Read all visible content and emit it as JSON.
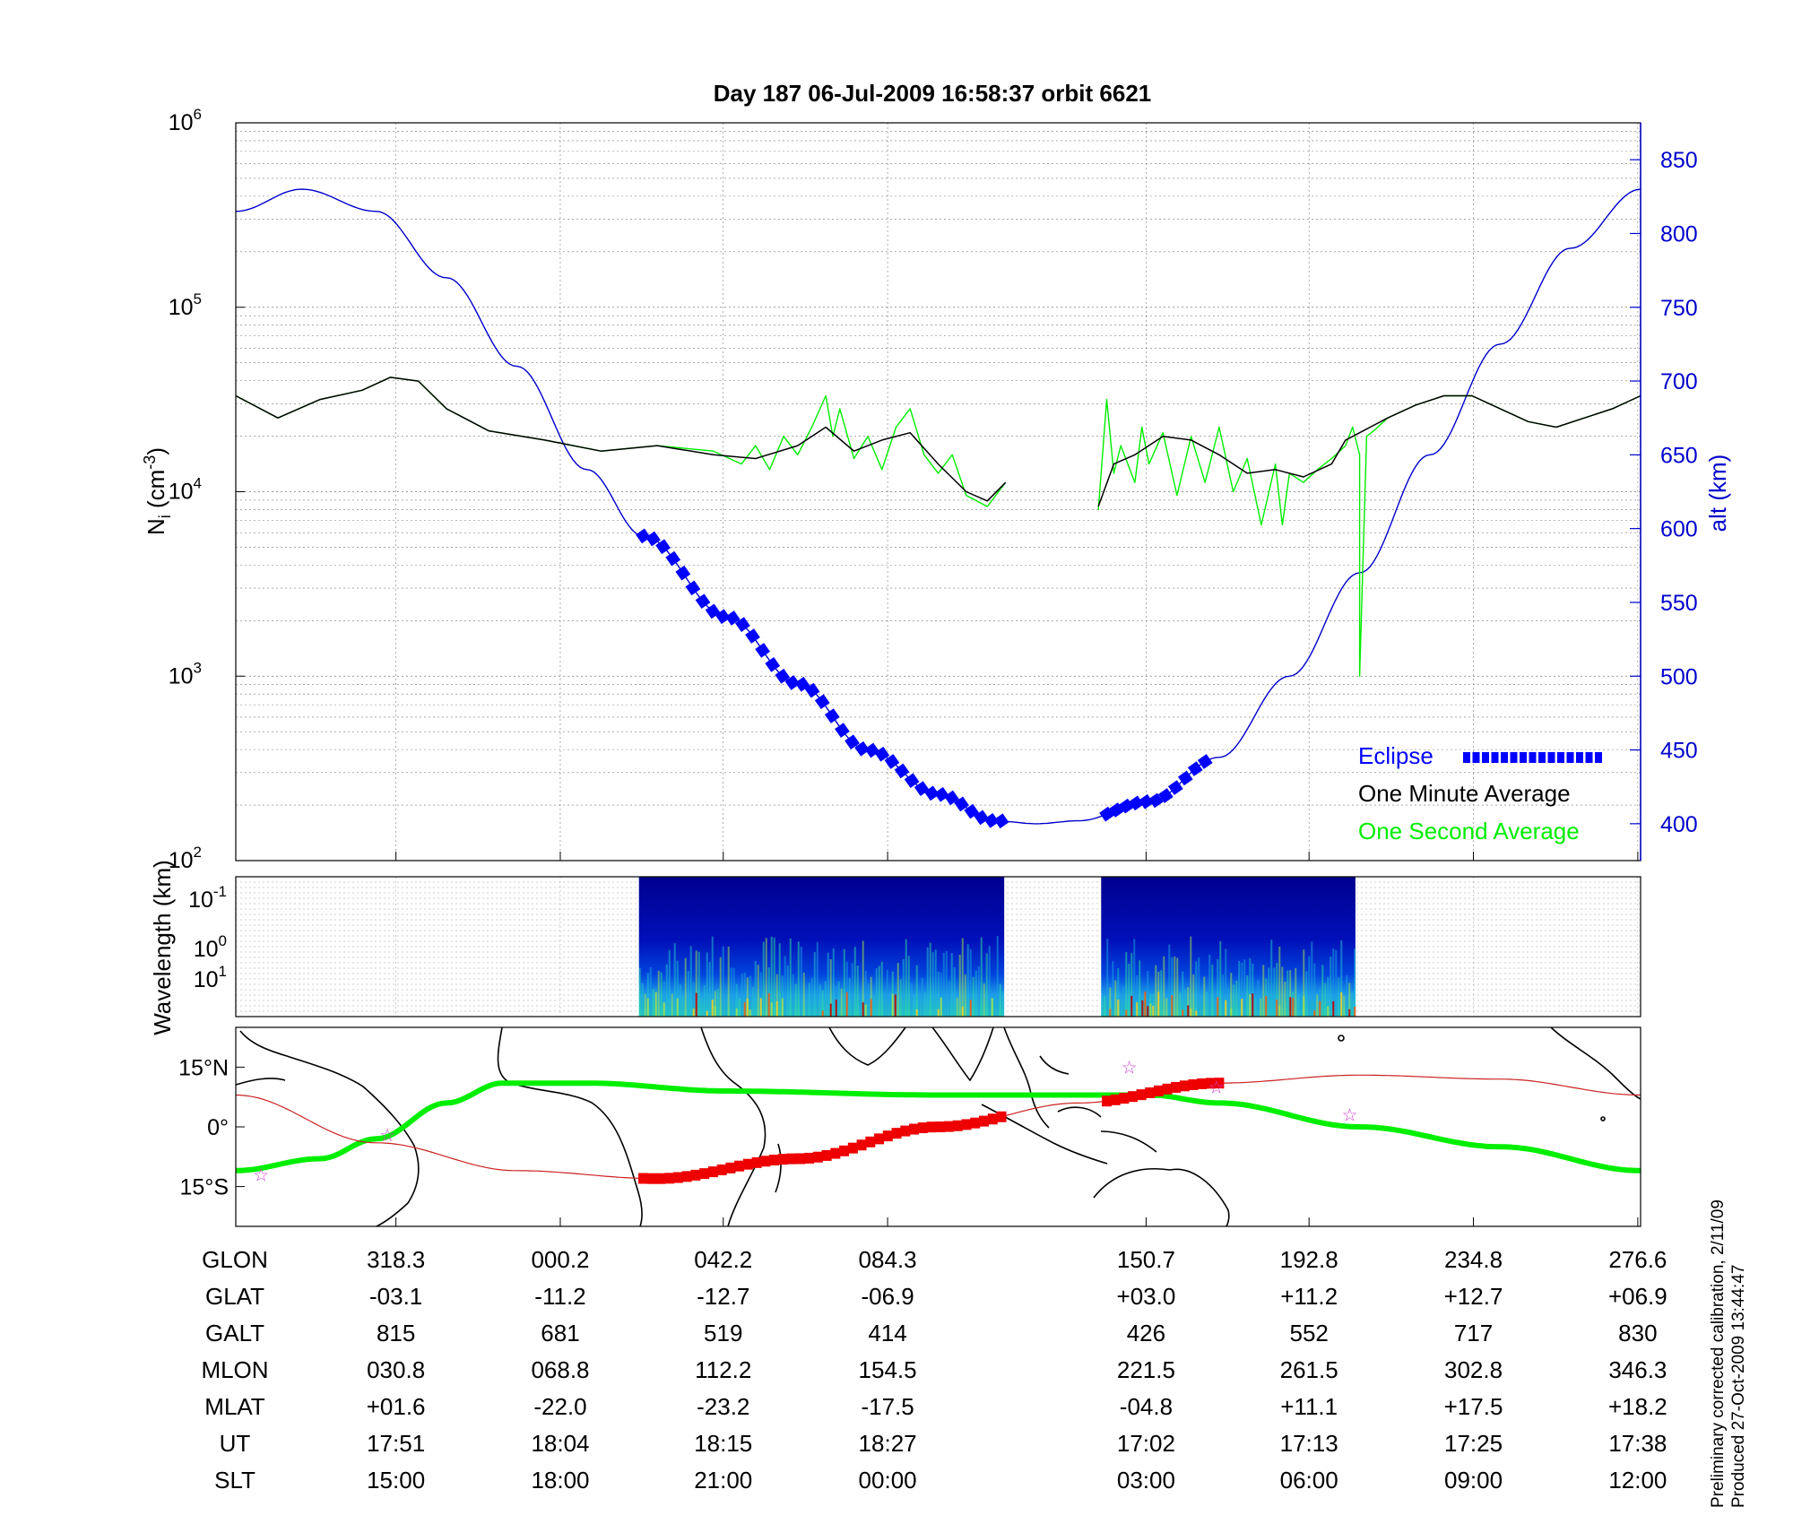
{
  "title": "Day 187  06-Jul-2009 16:58:37   orbit 6621",
  "chart_data": [
    {
      "type": "line",
      "name": "density-altitude",
      "ylabel_left": "N",
      "ylabel_left_sub": "i",
      "ylabel_left_unit_pre": " (cm",
      "ylabel_left_unit_sup": "-3",
      "ylabel_left_unit_post": ")",
      "ylabel_right": "alt (km)",
      "ylim_left_log": [
        2,
        6
      ],
      "left_ticks": [
        {
          "base": "10",
          "exp": "2"
        },
        {
          "base": "10",
          "exp": "3"
        },
        {
          "base": "10",
          "exp": "4"
        },
        {
          "base": "10",
          "exp": "5"
        },
        {
          "base": "10",
          "exp": "6"
        }
      ],
      "ylim_right": [
        375,
        875
      ],
      "right_ticks": [
        "400",
        "450",
        "500",
        "550",
        "600",
        "650",
        "700",
        "750",
        "800",
        "850"
      ],
      "x_range": [
        0,
        1
      ],
      "grid": true,
      "legend_position": "bottom-right",
      "legend": [
        {
          "label": "Eclipse",
          "color": "#0000ff"
        },
        {
          "label": "One Minute Average",
          "color": "#000000"
        },
        {
          "label": "One Second Average",
          "color": "#00ee00"
        }
      ],
      "altitude_km": {
        "x": [
          0,
          0.047,
          0.1,
          0.15,
          0.2,
          0.25,
          0.29,
          0.35,
          0.4,
          0.45,
          0.5,
          0.54,
          0.57,
          0.6,
          0.65,
          0.7,
          0.75,
          0.8,
          0.85,
          0.9,
          0.95,
          1.0
        ],
        "y": [
          815,
          830,
          815,
          770,
          710,
          640,
          595,
          540,
          495,
          450,
          420,
          402,
          400,
          402,
          415,
          445,
          500,
          570,
          650,
          725,
          790,
          830
        ]
      },
      "eclipse_segments": [
        [
          0.29,
          0.545
        ],
        [
          0.62,
          0.69
        ]
      ],
      "ni_minute_avg": {
        "segments": [
          {
            "x": [
              0,
              0.03,
              0.06,
              0.09,
              0.11,
              0.13,
              0.15,
              0.18,
              0.22,
              0.26,
              0.3,
              0.34,
              0.37,
              0.4,
              0.42,
              0.44,
              0.46,
              0.48,
              0.5,
              0.52,
              0.535,
              0.548
            ],
            "log10": [
              4.52,
              4.4,
              4.5,
              4.55,
              4.62,
              4.6,
              4.45,
              4.33,
              4.28,
              4.22,
              4.25,
              4.2,
              4.18,
              4.25,
              4.35,
              4.22,
              4.28,
              4.32,
              4.15,
              4.0,
              3.95,
              4.05
            ]
          },
          {
            "x": [
              0.614,
              0.625,
              0.64,
              0.66,
              0.68,
              0.7,
              0.72,
              0.74,
              0.76,
              0.78,
              0.79,
              0.8,
              0.82,
              0.84,
              0.86,
              0.88,
              0.9,
              0.92,
              0.94,
              0.96,
              0.98,
              1.0
            ],
            "log10": [
              3.92,
              4.15,
              4.2,
              4.3,
              4.28,
              4.2,
              4.1,
              4.12,
              4.08,
              4.15,
              4.28,
              4.32,
              4.4,
              4.47,
              4.52,
              4.52,
              4.45,
              4.38,
              4.35,
              4.4,
              4.45,
              4.52
            ]
          }
        ]
      },
      "ni_second_avg": {
        "segments": [
          {
            "x": [
              0,
              0.03,
              0.06,
              0.09,
              0.11,
              0.13,
              0.15,
              0.18,
              0.22,
              0.26,
              0.3,
              0.34,
              0.36,
              0.37,
              0.38,
              0.39,
              0.4,
              0.41,
              0.42,
              0.425,
              0.43,
              0.44,
              0.45,
              0.46,
              0.47,
              0.48,
              0.49,
              0.5,
              0.51,
              0.52,
              0.535,
              0.548
            ],
            "log10": [
              4.52,
              4.4,
              4.5,
              4.55,
              4.62,
              4.6,
              4.45,
              4.33,
              4.28,
              4.22,
              4.25,
              4.22,
              4.15,
              4.25,
              4.12,
              4.3,
              4.2,
              4.35,
              4.52,
              4.3,
              4.45,
              4.18,
              4.3,
              4.12,
              4.35,
              4.45,
              4.2,
              4.1,
              4.2,
              3.98,
              3.92,
              4.05
            ]
          },
          {
            "x": [
              0.614,
              0.62,
              0.625,
              0.63,
              0.64,
              0.645,
              0.65,
              0.66,
              0.67,
              0.68,
              0.69,
              0.7,
              0.71,
              0.72,
              0.73,
              0.74,
              0.745,
              0.75,
              0.76,
              0.77,
              0.78,
              0.79,
              0.795,
              0.8,
              0.8,
              0.805,
              0.81,
              0.82,
              0.84,
              0.86,
              0.88,
              0.9,
              0.92,
              0.94,
              0.96,
              0.98,
              1.0
            ],
            "log10": [
              3.9,
              4.5,
              4.1,
              4.25,
              4.05,
              4.35,
              4.15,
              4.32,
              3.98,
              4.3,
              4.05,
              4.35,
              4.0,
              4.18,
              3.82,
              4.15,
              3.82,
              4.1,
              4.05,
              4.12,
              4.18,
              4.25,
              4.35,
              4.2,
              3.0,
              4.3,
              4.33,
              4.4,
              4.47,
              4.52,
              4.52,
              4.45,
              4.38,
              4.35,
              4.4,
              4.45,
              4.52
            ]
          }
        ]
      }
    },
    {
      "type": "heatmap",
      "name": "wavelength-spectrogram",
      "ylabel": "Wavelength (km)",
      "ytick_labels": [
        {
          "base": "10",
          "exp": "-1"
        },
        {
          "base": "10",
          "exp": "0"
        },
        {
          "base": "10",
          "exp": "1"
        }
      ],
      "data_segments": [
        [
          0.287,
          0.547
        ],
        [
          0.616,
          0.797
        ]
      ]
    },
    {
      "type": "line",
      "name": "ground-track-map",
      "ytick_labels": [
        "15°N",
        "0°",
        "15°S"
      ],
      "ylim": [
        -25,
        25
      ],
      "orbit_track_lat": {
        "x": [
          0,
          0.1,
          0.2,
          0.3,
          0.4,
          0.5,
          0.6,
          0.7,
          0.8,
          0.9,
          1.0
        ],
        "lat": [
          8,
          -4,
          -11,
          -13,
          -8,
          0,
          6,
          11,
          13,
          12,
          8
        ]
      },
      "eclipse_track_segments": [
        [
          0.29,
          0.545
        ],
        [
          0.62,
          0.7
        ]
      ],
      "magnetic_equator_lat": {
        "x": [
          0,
          0.06,
          0.1,
          0.15,
          0.19,
          0.25,
          0.35,
          0.5,
          0.65,
          0.7,
          0.8,
          0.9,
          1.0
        ],
        "lat": [
          -11,
          -8,
          -3,
          6,
          11,
          11,
          9,
          8,
          8,
          6,
          0,
          -5,
          -11
        ]
      },
      "station_markers": [
        {
          "x": 0.018,
          "lat": -12
        },
        {
          "x": 0.108,
          "lat": -2
        },
        {
          "x": 0.636,
          "lat": 15
        },
        {
          "x": 0.698,
          "lat": 10
        },
        {
          "x": 0.793,
          "lat": 3
        }
      ]
    }
  ],
  "ephemeris_table": {
    "columns_x": [
      0.114,
      0.231,
      0.347,
      0.464,
      0.648,
      0.764,
      0.881,
      0.998
    ],
    "rows": [
      {
        "label": "GLON",
        "values": [
          "318.3",
          "000.2",
          "042.2",
          "084.3",
          "150.7",
          "192.8",
          "234.8",
          "276.6"
        ]
      },
      {
        "label": "GLAT",
        "values": [
          "-03.1",
          "-11.2",
          "-12.7",
          "-06.9",
          "+03.0",
          "+11.2",
          "+12.7",
          "+06.9"
        ]
      },
      {
        "label": "GALT",
        "values": [
          "815",
          "681",
          "519",
          "414",
          "426",
          "552",
          "717",
          "830"
        ]
      },
      {
        "label": "MLON",
        "values": [
          "030.8",
          "068.8",
          "112.2",
          "154.5",
          "221.5",
          "261.5",
          "302.8",
          "346.3"
        ]
      },
      {
        "label": "MLAT",
        "values": [
          "+01.6",
          "-22.0",
          "-23.2",
          "-17.5",
          "-04.8",
          "+11.1",
          "+17.5",
          "+18.2"
        ]
      },
      {
        "label": "UT",
        "values": [
          "17:51",
          "18:04",
          "18:15",
          "18:27",
          "17:02",
          "17:13",
          "17:25",
          "17:38"
        ]
      },
      {
        "label": "SLT",
        "values": [
          "15:00",
          "18:00",
          "21:00",
          "00:00",
          "03:00",
          "06:00",
          "09:00",
          "12:00"
        ]
      }
    ]
  },
  "footnote": {
    "line1": "Preliminary corrected calibration, 2/11/09",
    "line2": "Produced 27-Oct-2009 13:44:47"
  },
  "colors": {
    "altitude": "#0000cc",
    "eclipse": "#0000ff",
    "minute_avg": "#000000",
    "second_avg": "#00ee00",
    "orbit_track": "#cc2222",
    "eclipse_track": "#ee0000",
    "magnetic_equator": "#00ee00",
    "station": "#cc44cc"
  }
}
